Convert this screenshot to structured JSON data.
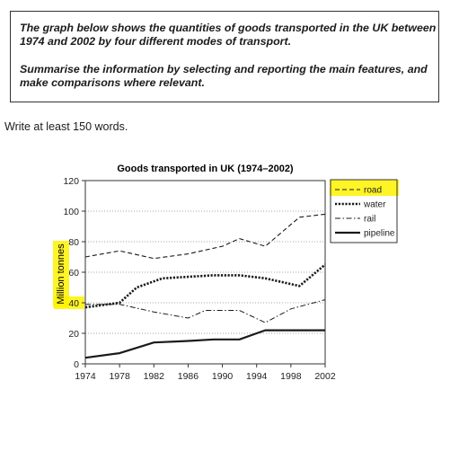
{
  "task": {
    "line1": "The graph below shows the quantities of goods transported in the UK between",
    "line2": "1974 and 2002 by four different modes of transport.",
    "line3": "Summarise the information by selecting and reporting the main features, and",
    "line4": "make comparisons where relevant."
  },
  "instruction": "Write at least 150 words.",
  "highlight_color": "#fff200",
  "chart_data": {
    "type": "line",
    "title": "Goods transported in UK (1974–2002)",
    "xlabel": "",
    "ylabel": "Million tonnes",
    "xlim": [
      1974,
      2002
    ],
    "ylim": [
      0,
      120
    ],
    "x_ticks": [
      "1974",
      "1978",
      "1982",
      "1986",
      "1990",
      "1994",
      "1998",
      "2002"
    ],
    "y_ticks": [
      "0",
      "20",
      "40",
      "60",
      "80",
      "100",
      "120"
    ],
    "grid": "horizontal dotted",
    "legend_position": "right",
    "series": [
      {
        "name": "road",
        "style": "dashed",
        "x": [
          1974,
          1978,
          1982,
          1986,
          1990,
          1992,
          1995,
          1999,
          2002
        ],
        "values": [
          70,
          74,
          69,
          72,
          77,
          82,
          77,
          96,
          98
        ]
      },
      {
        "name": "water",
        "style": "dotted",
        "x": [
          1974,
          1978,
          1980,
          1983,
          1986,
          1989,
          1992,
          1995,
          1999,
          2002
        ],
        "values": [
          37,
          40,
          50,
          56,
          57,
          58,
          58,
          56,
          51,
          65
        ]
      },
      {
        "name": "rail",
        "style": "dash-dot",
        "x": [
          1974,
          1978,
          1982,
          1986,
          1988,
          1992,
          1995,
          1998,
          2002
        ],
        "values": [
          39,
          39,
          34,
          30,
          35,
          35,
          27,
          36,
          42
        ]
      },
      {
        "name": "pipeline",
        "style": "solid",
        "x": [
          1974,
          1978,
          1982,
          1986,
          1989,
          1992,
          1994,
          1995,
          1998,
          2002
        ],
        "values": [
          4,
          7,
          14,
          15,
          16,
          16,
          20,
          22,
          22,
          22
        ]
      }
    ]
  }
}
